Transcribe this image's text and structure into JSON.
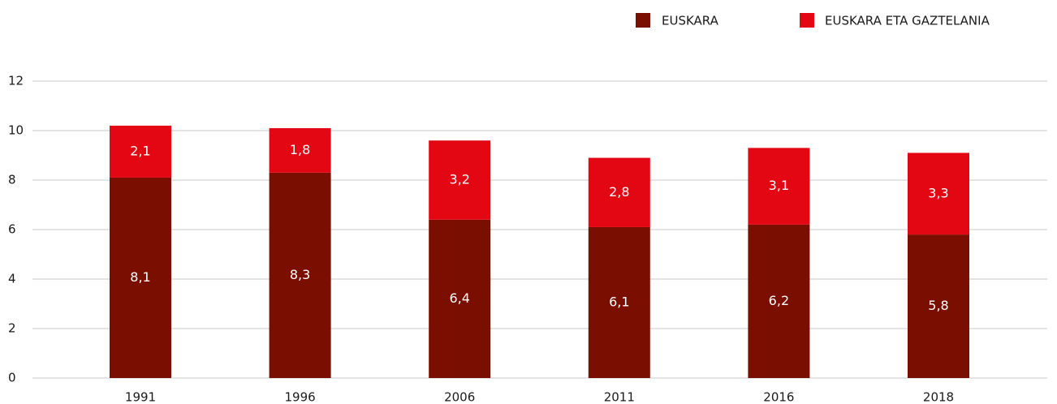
{
  "chart_data": {
    "type": "stacked_bar",
    "categories": [
      "1991",
      "1996",
      "2006",
      "2011",
      "2016",
      "2018"
    ],
    "series": [
      {
        "name": "EUSKARA",
        "color": "#7a0e00",
        "values": [
          8.1,
          8.3,
          6.4,
          6.1,
          6.2,
          5.8
        ],
        "value_labels": [
          "8,1",
          "8,3",
          "6,4",
          "6,1",
          "6,2",
          "5,8"
        ]
      },
      {
        "name": "EUSKARA ETA GAZTELANIA",
        "color": "#e30613",
        "values": [
          2.1,
          1.8,
          3.2,
          2.8,
          3.1,
          3.3
        ],
        "value_labels": [
          "2,1",
          "1,8",
          "3,2",
          "2,8",
          "3,1",
          "3,3"
        ]
      }
    ],
    "ylim": [
      0,
      12
    ],
    "yticks": [
      0,
      2,
      4,
      6,
      8,
      10,
      12
    ],
    "grid": true,
    "legend": "top-right"
  }
}
